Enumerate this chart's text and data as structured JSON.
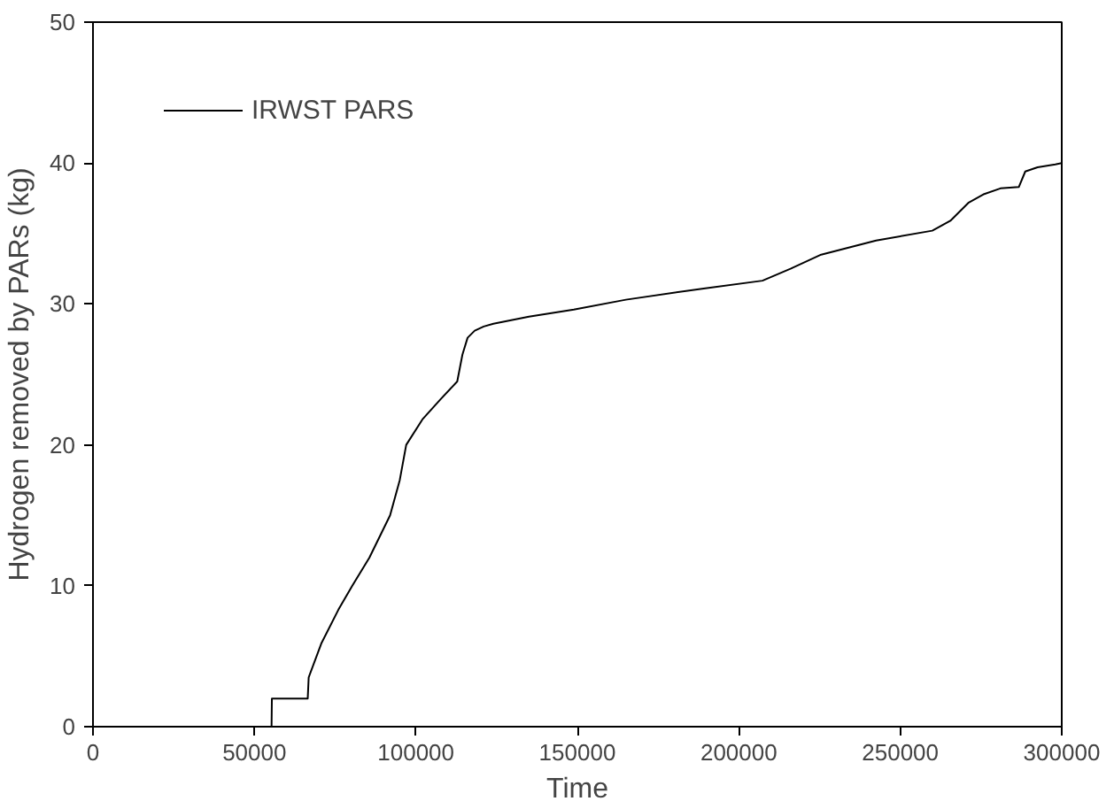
{
  "chart_data": {
    "type": "line",
    "xlabel": "Time",
    "ylabel": "Hydrogen removed by PARs (kg)",
    "xlim": [
      0,
      300000
    ],
    "ylim": [
      0,
      50
    ],
    "xticks": [
      0,
      50000,
      100000,
      150000,
      200000,
      250000,
      300000
    ],
    "yticks": [
      0,
      10,
      20,
      30,
      40,
      50
    ],
    "grid": false,
    "legend": "top left",
    "marker": "none",
    "line_style": "solid",
    "series": [
      {
        "name": "IRWST PARS",
        "color": "#000000",
        "x": [
          55300,
          55400,
          66500,
          66800,
          70700,
          76000,
          80300,
          85600,
          92000,
          95000,
          97000,
          102000,
          107500,
          112800,
          114400,
          116000,
          118200,
          121000,
          124000,
          135000,
          148900,
          165000,
          189100,
          207300,
          216000,
          225500,
          242500,
          259900,
          265500,
          271200,
          276000,
          281000,
          286700,
          288700,
          292500,
          298000,
          300000
        ],
        "values": [
          0,
          2,
          2,
          3.5,
          5.9,
          8.3,
          10,
          12,
          15,
          17.5,
          20,
          21.8,
          23.2,
          24.5,
          26.4,
          27.6,
          28.1,
          28.4,
          28.6,
          29.1,
          29.6,
          30.3,
          31.1,
          31.65,
          32.5,
          33.5,
          34.5,
          35.2,
          35.9,
          37.2,
          37.8,
          38.2,
          38.3,
          39.4,
          39.7,
          39.9,
          40
        ]
      }
    ]
  }
}
